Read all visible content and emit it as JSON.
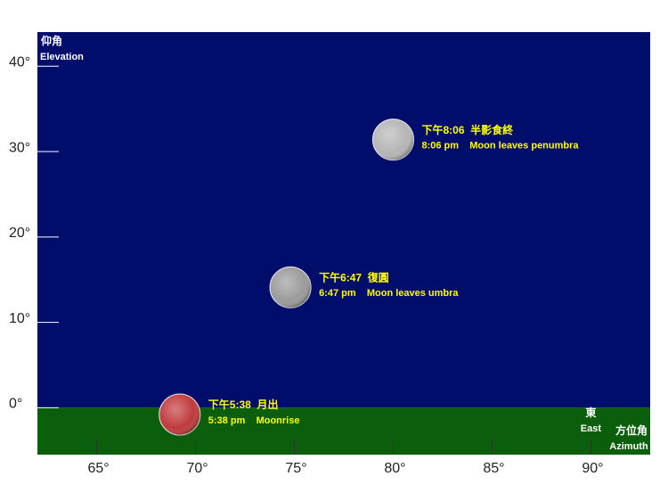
{
  "chart_data": {
    "type": "scatter",
    "y_label": [
      "仰角",
      "Elevation"
    ],
    "x_label": [
      "方位角",
      "Azimuth"
    ],
    "annotation": {
      "x": 90,
      "lines": [
        "東",
        "East"
      ]
    },
    "sky_color": "#000d6b",
    "ground_color": "#0b5e0b",
    "label_color": "#ffff00",
    "xlim": [
      62,
      93
    ],
    "ylim": [
      -5.5,
      44
    ],
    "xticks": [
      {
        "value": 65,
        "label": "65°"
      },
      {
        "value": 70,
        "label": "70°"
      },
      {
        "value": 75,
        "label": "75°"
      },
      {
        "value": 80,
        "label": "80°"
      },
      {
        "value": 85,
        "label": "85°"
      },
      {
        "value": 90,
        "label": "90°"
      }
    ],
    "yticks": [
      {
        "value": 0,
        "label": "0°"
      },
      {
        "value": 10,
        "label": "10°"
      },
      {
        "value": 20,
        "label": "20°"
      },
      {
        "value": 30,
        "label": "30°"
      },
      {
        "value": 40,
        "label": "40°"
      }
    ],
    "points": [
      {
        "x": 69.2,
        "y": -0.8,
        "color": "#c0393b",
        "labels": [
          "下午5:38  月出",
          "5:38 pm    Moonrise"
        ]
      },
      {
        "x": 74.8,
        "y": 14.1,
        "color": "#9a9a9a",
        "labels": [
          "下午6:47  復圓",
          "6:47 pm    Moon leaves umbra"
        ]
      },
      {
        "x": 80.0,
        "y": 31.4,
        "color": "#b5b5b5",
        "labels": [
          "下午8:06  半影食終",
          "8:06 pm    Moon leaves penumbra"
        ]
      }
    ]
  }
}
